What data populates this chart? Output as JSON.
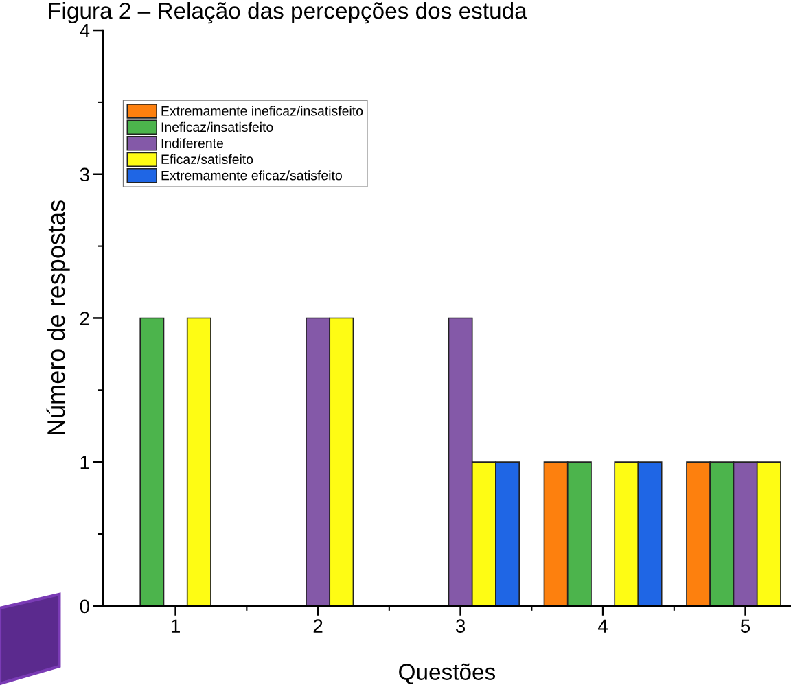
{
  "chart_data": {
    "type": "bar",
    "title": "Figura 2 – Relação das percepções dos estuda",
    "xlabel": "Questões",
    "ylabel": "Número de respostas",
    "categories": [
      "1",
      "2",
      "3",
      "4",
      "5"
    ],
    "series": [
      {
        "name": "Extremamente ineficaz/insatisfeito",
        "color": "#fd800e",
        "values": [
          null,
          null,
          null,
          1,
          1
        ]
      },
      {
        "name": "Ineficaz/insatisfeito",
        "color": "#4cb44c",
        "values": [
          2,
          null,
          null,
          1,
          1
        ]
      },
      {
        "name": "Indiferente",
        "color": "#8459a8",
        "values": [
          null,
          2,
          2,
          null,
          1
        ]
      },
      {
        "name": "Eficaz/satisfeito",
        "color": "#fefc14",
        "values": [
          2,
          2,
          1,
          1,
          1
        ]
      },
      {
        "name": "Extremamente eficaz/satisfeito",
        "color": "#1f66e5",
        "values": [
          null,
          null,
          1,
          1,
          null
        ]
      }
    ],
    "ylim": [
      0,
      4
    ],
    "yticks": [
      0,
      1,
      2,
      3,
      4
    ],
    "grid": false,
    "legend": "top left"
  }
}
